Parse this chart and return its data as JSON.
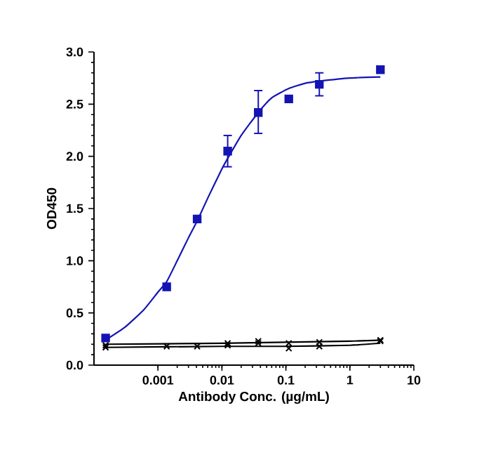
{
  "chart_data": {
    "type": "scatter",
    "xlabel": "Antibody Conc. (µg/mL)",
    "ylabel": "OD450",
    "log": "x",
    "grid": false,
    "xlim": [
      0.0001,
      10
    ],
    "xticks": [
      0.001,
      0.01,
      0.1,
      1,
      10
    ],
    "ylim": [
      0,
      3
    ],
    "yticks": [
      {
        "value": 0,
        "label": "0.0"
      },
      0.5,
      {
        "value": 1,
        "label": "1.0"
      },
      1.5,
      {
        "value": 2,
        "label": "2.0"
      },
      2.5,
      {
        "value": 3,
        "label": "3.0"
      }
    ],
    "series": [
      {
        "type": "scatter",
        "marker": "square",
        "color": "#1414b4",
        "x": [
          0.000152,
          0.00137,
          0.0041,
          0.0123,
          0.037,
          0.111,
          0.333,
          3
        ],
        "values": [
          0.26,
          0.75,
          1.4,
          2.05,
          2.42,
          2.55,
          2.69,
          2.83
        ],
        "errors": [
          null,
          null,
          [
            1.37,
            1.42
          ],
          [
            1.9,
            2.2
          ],
          [
            2.22,
            2.63
          ],
          null,
          [
            2.58,
            2.8
          ],
          null
        ]
      },
      {
        "type": "line",
        "color": "#1414b4",
        "x": [
          0.000152,
          0.0003,
          0.0006,
          0.001,
          0.00137,
          0.002,
          0.003,
          0.0041,
          0.006,
          0.01,
          0.0123,
          0.02,
          0.037,
          0.06,
          0.111,
          0.2,
          0.333,
          1,
          3
        ],
        "values": [
          0.24,
          0.36,
          0.53,
          0.7,
          0.8,
          1.0,
          1.22,
          1.38,
          1.6,
          1.88,
          1.98,
          2.2,
          2.42,
          2.56,
          2.65,
          2.7,
          2.72,
          2.75,
          2.76
        ]
      },
      {
        "marker": "cross",
        "color": "#000000",
        "x": [
          0.000152,
          0.00137,
          0.0041,
          0.0123,
          0.037,
          0.111,
          0.333,
          3
        ],
        "values": [
          0.17,
          0.18,
          0.18,
          0.19,
          0.21,
          0.16,
          0.18,
          0.23
        ]
      },
      {
        "marker": "cross",
        "color": "#000000",
        "x": [
          0.000152,
          0.00137,
          0.0041,
          0.0123,
          0.037,
          0.111,
          0.333,
          3
        ],
        "values": [
          0.19,
          null,
          null,
          0.21,
          0.23,
          0.21,
          0.22,
          0.24
        ]
      },
      {
        "type": "line",
        "color": "#000000",
        "x": [
          0.000152,
          0.01,
          0.1,
          1,
          3
        ],
        "values": [
          0.17,
          0.18,
          0.18,
          0.19,
          0.21
        ]
      },
      {
        "type": "line",
        "color": "#000000",
        "x": [
          0.000152,
          0.01,
          0.1,
          1,
          3
        ],
        "values": [
          0.2,
          0.21,
          0.22,
          0.23,
          0.24
        ]
      }
    ]
  }
}
